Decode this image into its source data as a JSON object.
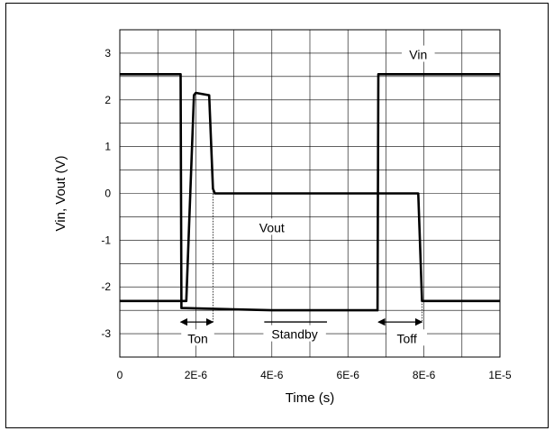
{
  "chart_data": {
    "type": "line",
    "title": "",
    "xlabel": "Time (s)",
    "ylabel": "Vin, Vout (V)",
    "xlim": [
      0,
      1e-05
    ],
    "ylim": [
      -3.5,
      3.5
    ],
    "grid": true,
    "xticks": [
      {
        "value": 0,
        "label": "0"
      },
      {
        "value": 2e-06,
        "label": "2E-6"
      },
      {
        "value": 4e-06,
        "label": "4E-6"
      },
      {
        "value": 6e-06,
        "label": "6E-6"
      },
      {
        "value": 8e-06,
        "label": "8E-6"
      },
      {
        "value": 1e-05,
        "label": "1E-5"
      }
    ],
    "yticks": [
      {
        "value": 3,
        "label": "3"
      },
      {
        "value": 2,
        "label": "2"
      },
      {
        "value": 1,
        "label": "1"
      },
      {
        "value": 0,
        "label": "0"
      },
      {
        "value": -1,
        "label": "-1"
      },
      {
        "value": -2,
        "label": "-2"
      },
      {
        "value": -3,
        "label": "-3"
      }
    ],
    "series": [
      {
        "name": "Vin",
        "x": [
          0,
          1.6e-06,
          1.62e-06,
          4e-06,
          6.78e-06,
          6.8e-06,
          1e-05
        ],
        "y": [
          2.55,
          2.55,
          -2.45,
          -2.5,
          -2.5,
          2.55,
          2.55
        ]
      },
      {
        "name": "Vout",
        "x": [
          0,
          1.75e-06,
          1.95e-06,
          2e-06,
          2.35e-06,
          2.45e-06,
          2.5e-06,
          4e-06,
          7.85e-06,
          7.95e-06,
          1e-05
        ],
        "y": [
          -2.3,
          -2.3,
          2.1,
          2.15,
          2.1,
          0.1,
          0.0,
          0.0,
          0.0,
          -2.3,
          -2.3
        ]
      }
    ],
    "annotations": [
      {
        "text": "Vin",
        "x": 7.85e-06,
        "y": 2.95
      },
      {
        "text": "Vout",
        "x": 4e-06,
        "y": -0.75
      },
      {
        "text": "Ton",
        "x": 2.05e-06,
        "y": -3.12
      },
      {
        "text": "Standby",
        "x": 4.6e-06,
        "y": -3.03
      },
      {
        "text": "Toff",
        "x": 7.55e-06,
        "y": -3.12
      }
    ],
    "markers": [
      {
        "kind": "arrow-both",
        "x1": 1.6e-06,
        "x2": 2.45e-06,
        "y": -2.75
      },
      {
        "kind": "arrow-both",
        "x1": 6.8e-06,
        "x2": 7.95e-06,
        "y": -2.75
      },
      {
        "kind": "bar",
        "x1": 3.8e-06,
        "x2": 5.45e-06,
        "y": -2.75
      },
      {
        "kind": "dotted-vline",
        "x": 2.45e-06,
        "y1": 0.05,
        "y2": -2.75
      },
      {
        "kind": "dotted-vline",
        "x": 7.95e-06,
        "y1": -2.3,
        "y2": -2.75
      }
    ]
  }
}
